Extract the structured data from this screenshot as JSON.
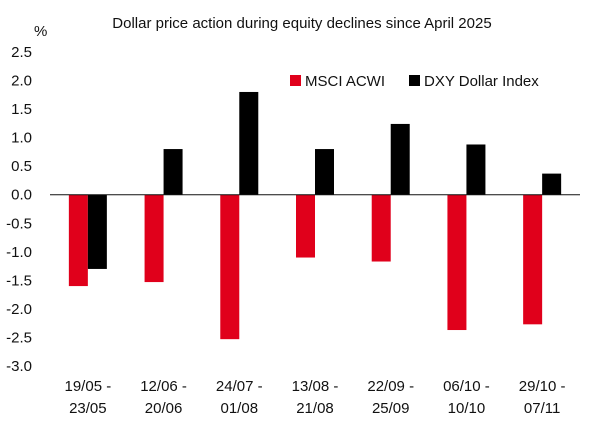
{
  "chart_data": {
    "type": "bar",
    "title": "Dollar price action during equity declines since April 2025",
    "ylabel": "%",
    "xlabel": "",
    "ylim": [
      -3.0,
      2.5
    ],
    "yticks": [
      "2.5",
      "2.0",
      "1.5",
      "1.0",
      "0.5",
      "0.0",
      "-0.5",
      "-1.0",
      "-1.5",
      "-2.0",
      "-2.5",
      "-3.0"
    ],
    "grid": false,
    "legend_position": "top-right",
    "categories": [
      {
        "line1": "19/05 -",
        "line2": "23/05"
      },
      {
        "line1": "12/06 -",
        "line2": "20/06"
      },
      {
        "line1": "24/07 -",
        "line2": "01/08"
      },
      {
        "line1": "13/08 -",
        "line2": "21/08"
      },
      {
        "line1": "22/09 -",
        "line2": "25/09"
      },
      {
        "line1": "06/10 -",
        "line2": "10/10"
      },
      {
        "line1": "29/10 -",
        "line2": "07/11"
      }
    ],
    "series": [
      {
        "name": "MSCI ACWI",
        "color": "#e0001b",
        "values": [
          -1.6,
          -1.53,
          -2.53,
          -1.1,
          -1.17,
          -2.37,
          -2.27
        ]
      },
      {
        "name": "DXY Dollar Index",
        "color": "#000000",
        "values": [
          -1.3,
          0.8,
          1.8,
          0.8,
          1.24,
          0.88,
          0.37
        ]
      }
    ]
  }
}
